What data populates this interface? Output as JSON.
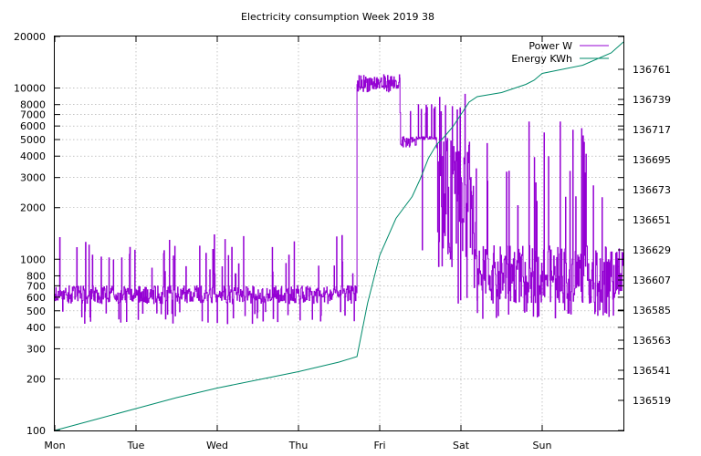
{
  "chart_data": {
    "type": "line",
    "title": "Electricity consumption Week 2019 38",
    "x_categories": [
      "Mon",
      "Tue",
      "Wed",
      "Thu",
      "Fri",
      "Sat",
      "Sun"
    ],
    "x_range_days": [
      0,
      7
    ],
    "y_left": {
      "scale": "log",
      "range": [
        100,
        20000
      ],
      "ticks": [
        100,
        200,
        300,
        400,
        500,
        600,
        700,
        800,
        1000,
        2000,
        3000,
        4000,
        5000,
        6000,
        7000,
        8000,
        10000,
        20000
      ]
    },
    "y_right": {
      "scale": "linear",
      "range": [
        136497,
        136785
      ],
      "ticks": [
        136519,
        136541,
        136563,
        136585,
        136607,
        136629,
        136651,
        136673,
        136695,
        136717,
        136739,
        136761
      ]
    },
    "legend_position": "top-right",
    "grid": true,
    "series": [
      {
        "name": "Power W",
        "axis": "left",
        "color": "#9400d3",
        "style": "step",
        "segments": [
          {
            "from": 0.0,
            "to": 3.72,
            "base": [
              550,
              700
            ],
            "spikes": [
              800,
              1400
            ],
            "dips": [
              420,
              500
            ]
          },
          {
            "from": 3.72,
            "to": 3.76,
            "base": [
              9500,
              12000
            ]
          },
          {
            "from": 3.76,
            "to": 4.25,
            "base": [
              9500,
              12000
            ]
          },
          {
            "from": 4.25,
            "to": 4.45,
            "base": [
              4500,
              5200
            ],
            "spikes": [
              6000,
              8000
            ]
          },
          {
            "from": 4.45,
            "to": 4.7,
            "base": [
              5000,
              5200
            ],
            "spikes": [
              7000,
              8000
            ],
            "dips": [
              600,
              1500
            ]
          },
          {
            "from": 4.7,
            "to": 5.2,
            "base": [
              900,
              5100
            ],
            "spikes": [
              6000,
              10000
            ],
            "dips": [
              550,
              700
            ]
          },
          {
            "from": 5.2,
            "to": 7.0,
            "base": [
              550,
              1200
            ],
            "spikes": [
              2000,
              6500
            ],
            "dips": [
              450,
              520
            ]
          }
        ]
      },
      {
        "name": "Energy KWh",
        "axis": "right",
        "color": "#008b6b",
        "style": "line",
        "x": [
          0.0,
          0.5,
          1.0,
          1.5,
          2.0,
          2.5,
          3.0,
          3.5,
          3.72,
          3.85,
          4.0,
          4.2,
          4.4,
          4.5,
          4.6,
          4.7,
          4.8,
          4.9,
          5.0,
          5.1,
          5.2,
          5.5,
          5.8,
          5.9,
          6.0,
          6.5,
          6.85,
          7.0
        ],
        "values": [
          136497,
          136505,
          136513,
          136521,
          136528,
          136534,
          136540,
          136547,
          136551,
          136590,
          136625,
          136652,
          136668,
          136681,
          136696,
          136706,
          136712,
          136719,
          136728,
          136737,
          136741,
          136744,
          136750,
          136753,
          136758,
          136764,
          136773,
          136781
        ]
      }
    ]
  }
}
